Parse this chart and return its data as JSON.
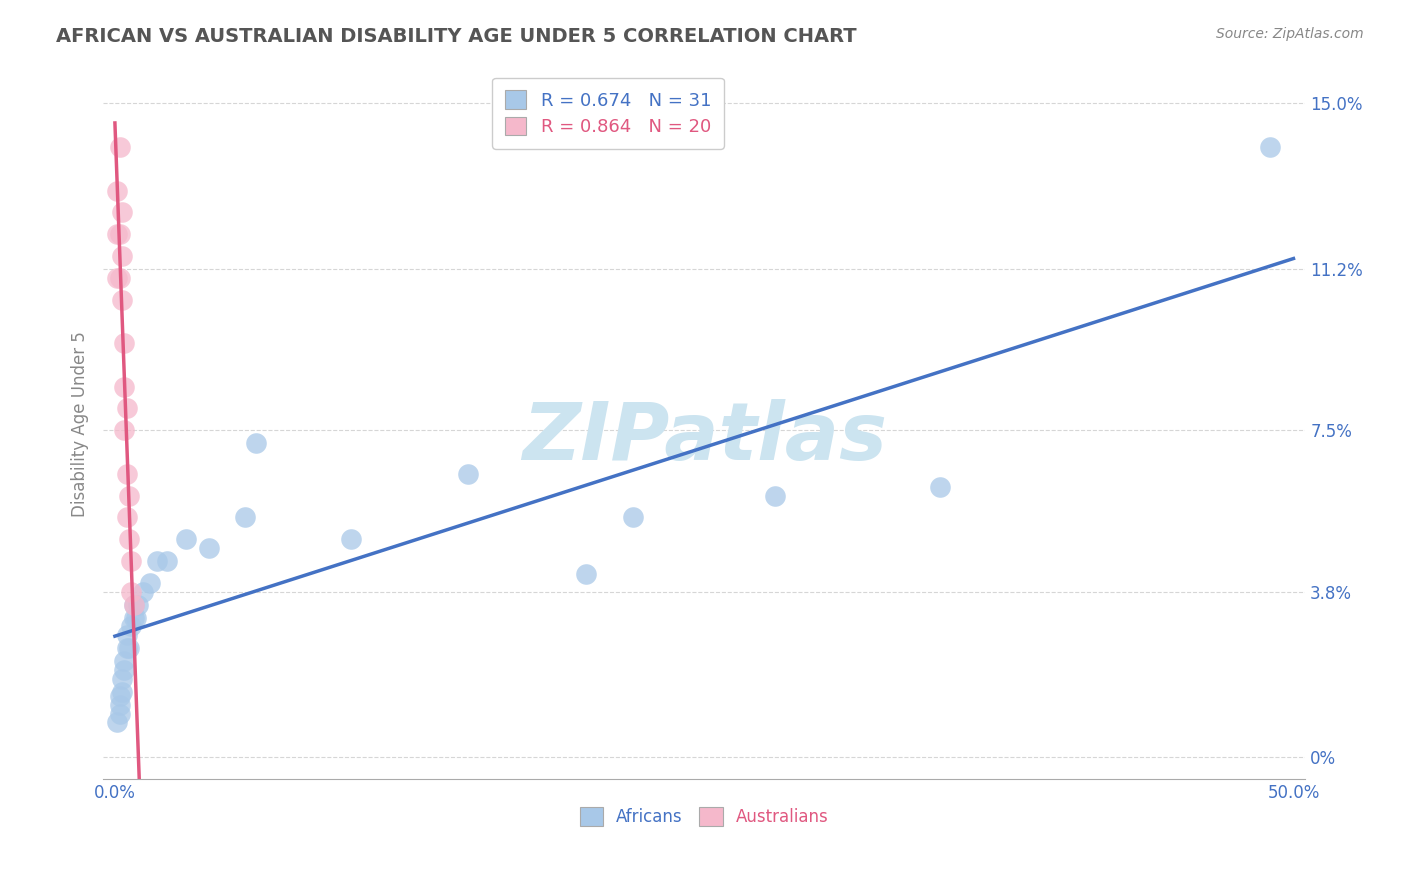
{
  "title": "AFRICAN VS AUSTRALIAN DISABILITY AGE UNDER 5 CORRELATION CHART",
  "source": "Source: ZipAtlas.com",
  "ylabel": "Disability Age Under 5",
  "xlim": [
    -0.005,
    0.505
  ],
  "ylim": [
    -0.005,
    0.158
  ],
  "xticks": [
    0.0,
    0.5
  ],
  "xticklabels": [
    "0.0%",
    "50.0%"
  ],
  "yticks": [
    0.0,
    0.038,
    0.075,
    0.112,
    0.15
  ],
  "yticklabels": [
    "0%",
    "3.8%",
    "7.5%",
    "11.2%",
    "15.0%"
  ],
  "africans_x": [
    0.001,
    0.002,
    0.002,
    0.002,
    0.003,
    0.003,
    0.004,
    0.004,
    0.005,
    0.005,
    0.006,
    0.007,
    0.008,
    0.008,
    0.009,
    0.01,
    0.012,
    0.015,
    0.018,
    0.022,
    0.03,
    0.04,
    0.055,
    0.06,
    0.1,
    0.15,
    0.2,
    0.22,
    0.28,
    0.35,
    0.49
  ],
  "africans_y": [
    0.008,
    0.01,
    0.012,
    0.014,
    0.015,
    0.018,
    0.02,
    0.022,
    0.025,
    0.028,
    0.025,
    0.03,
    0.032,
    0.035,
    0.032,
    0.035,
    0.038,
    0.04,
    0.045,
    0.045,
    0.05,
    0.048,
    0.055,
    0.072,
    0.05,
    0.065,
    0.042,
    0.055,
    0.06,
    0.062,
    0.14
  ],
  "australians_x": [
    0.001,
    0.001,
    0.001,
    0.002,
    0.002,
    0.002,
    0.003,
    0.003,
    0.003,
    0.004,
    0.004,
    0.004,
    0.005,
    0.005,
    0.005,
    0.006,
    0.006,
    0.007,
    0.007,
    0.008
  ],
  "australians_y": [
    0.13,
    0.12,
    0.11,
    0.14,
    0.12,
    0.11,
    0.125,
    0.115,
    0.105,
    0.095,
    0.085,
    0.075,
    0.08,
    0.065,
    0.055,
    0.06,
    0.05,
    0.045,
    0.038,
    0.035
  ],
  "africans_color": "#a8c8e8",
  "australians_color": "#f5b8cb",
  "africans_line_color": "#4472c4",
  "australians_line_color": "#e05880",
  "africans_R": 0.674,
  "africans_N": 31,
  "australians_R": 0.864,
  "australians_N": 20,
  "watermark": "ZIPatlas",
  "watermark_color": "#cce4f0",
  "background_color": "#ffffff",
  "grid_color": "#cccccc",
  "title_color": "#555555",
  "yaxis_label_color": "#888888",
  "ytick_color": "#4472c4",
  "xtick_color": "#4472c4"
}
